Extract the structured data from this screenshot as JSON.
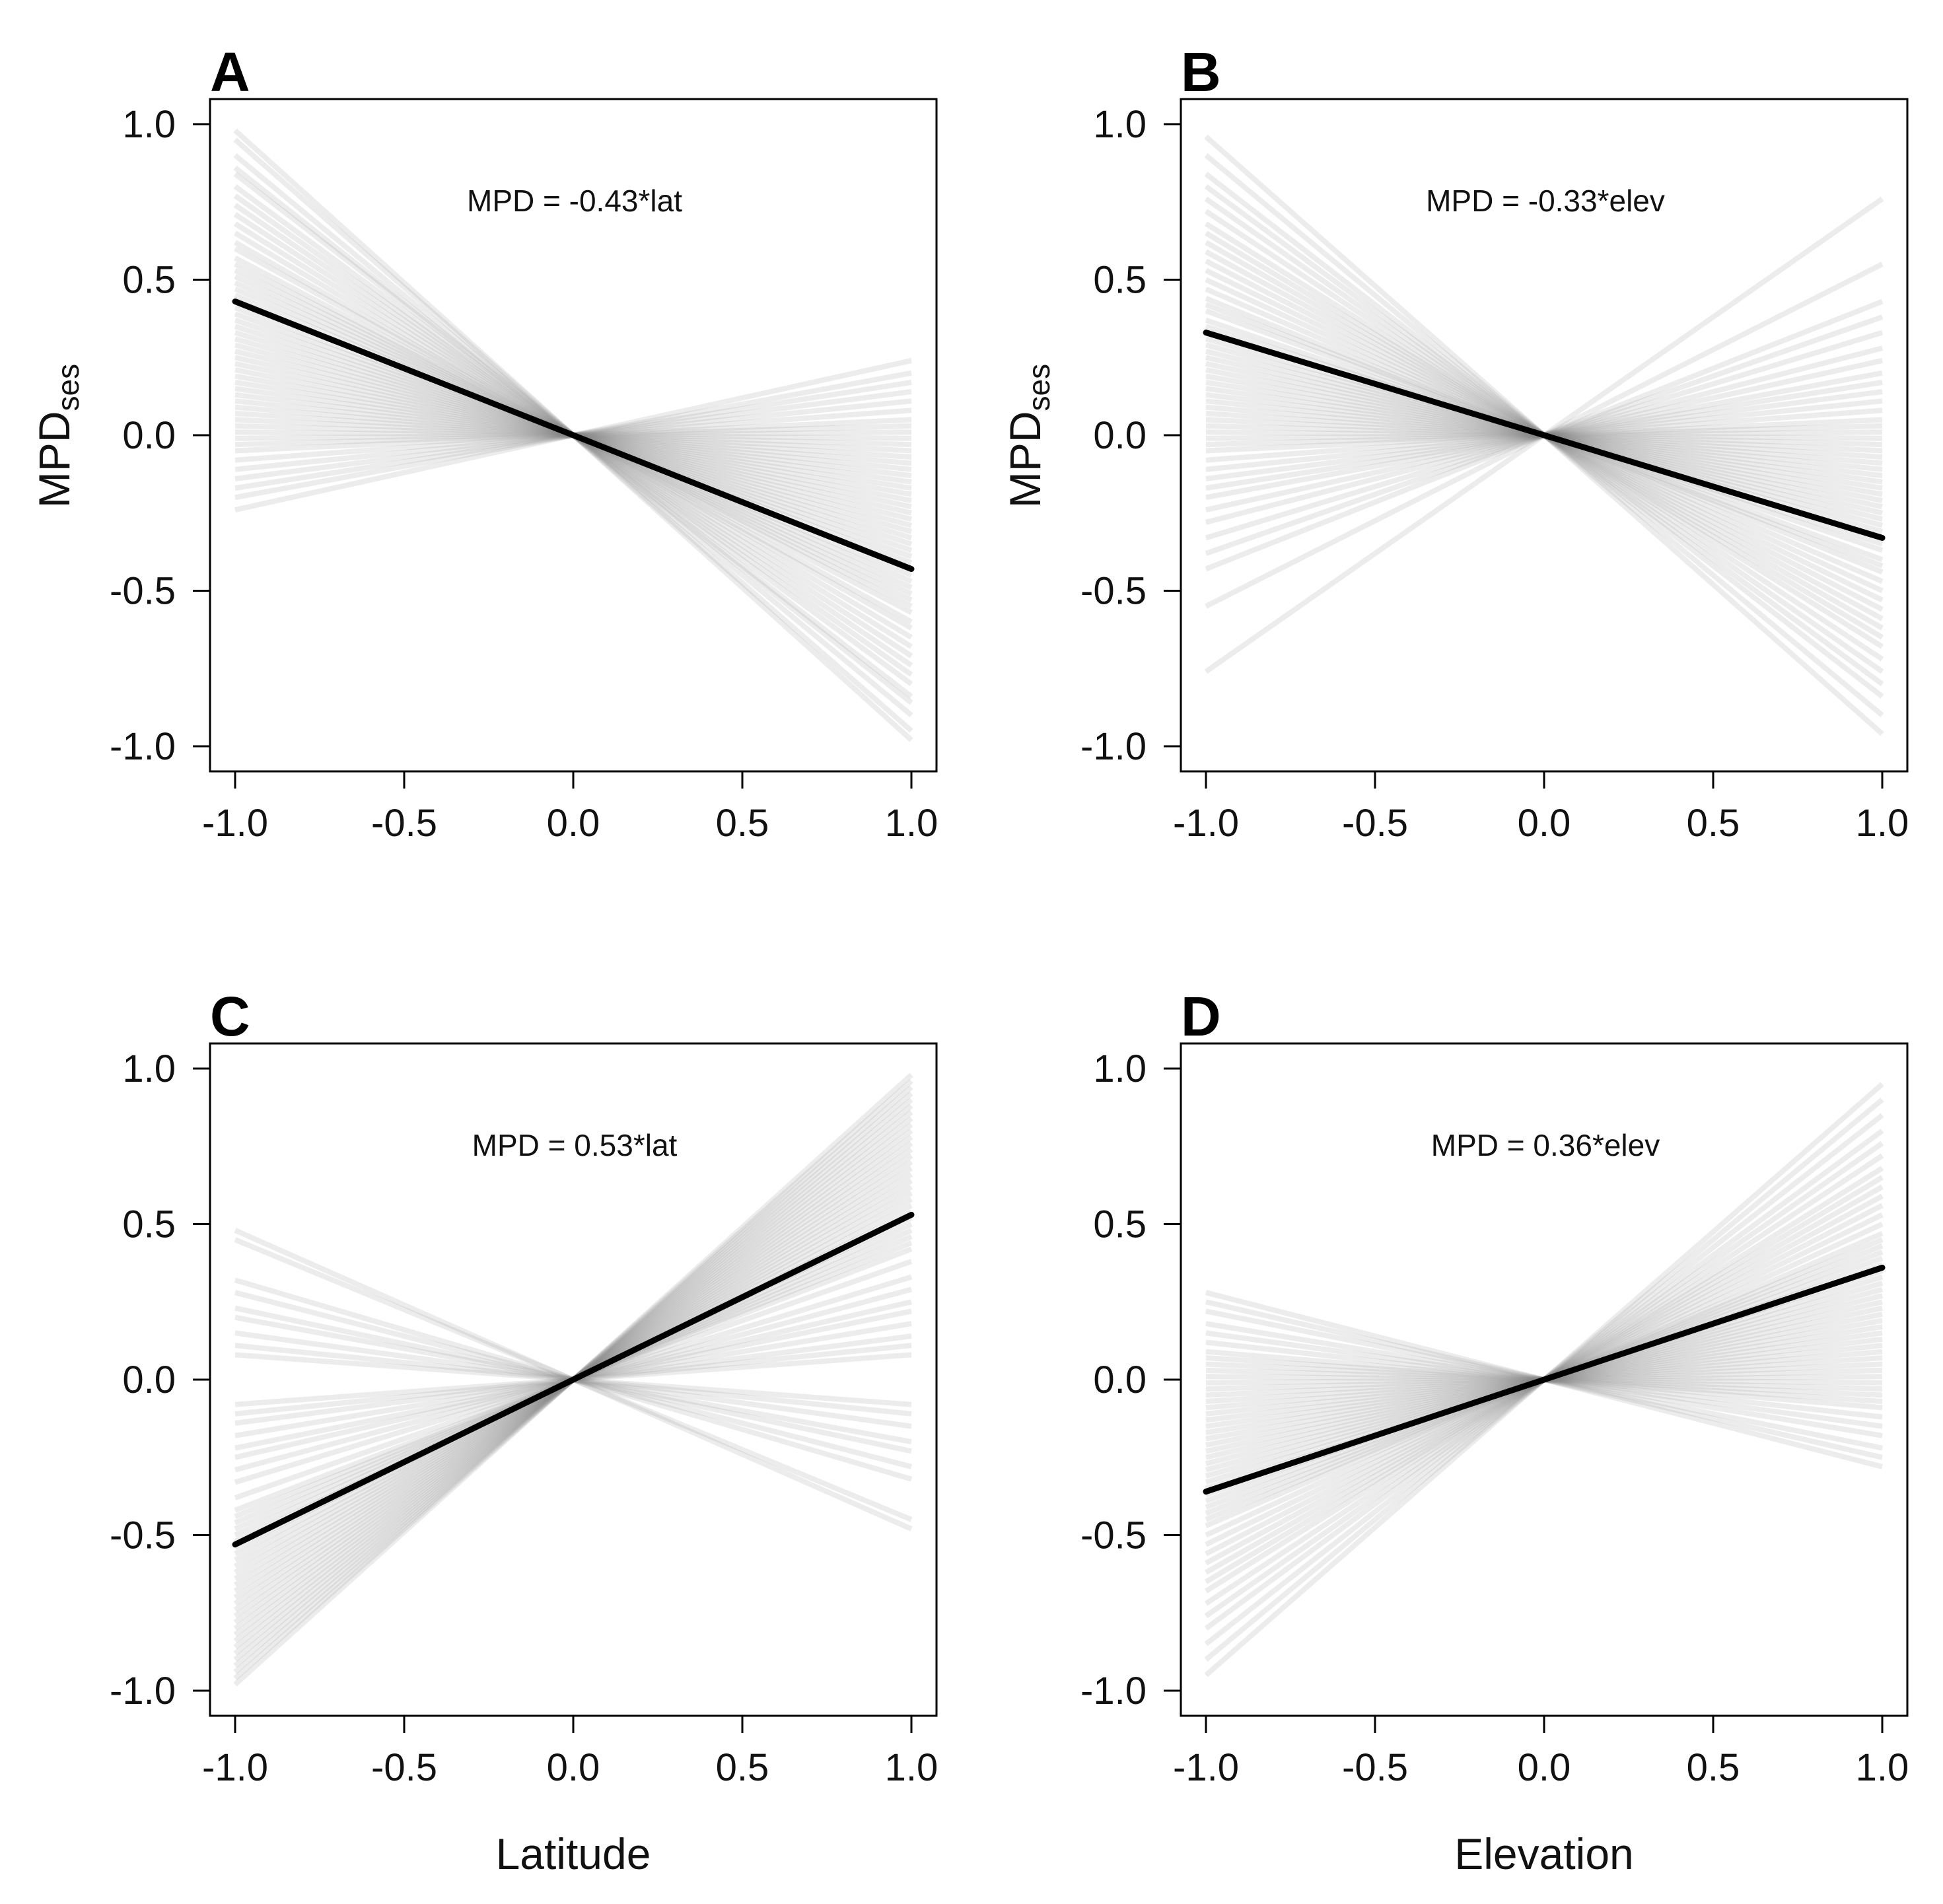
{
  "chart_data": [
    {
      "panel": "A",
      "type": "line",
      "equation": "MPD = -0.43*lat",
      "ylabel": "MPD",
      "ylabel_sub": "ses",
      "xlabel": "",
      "xlim": [
        -1.0,
        1.0
      ],
      "ylim": [
        -1.0,
        1.0
      ],
      "xticks": [
        "-1.0",
        "-0.5",
        "0.0",
        "0.5",
        "1.0"
      ],
      "yticks": [
        "1.0",
        "0.5",
        "0.0",
        "-0.5",
        "-1.0"
      ],
      "mean_slope": -0.43,
      "posterior_slopes": [
        -0.98,
        -0.95,
        -0.9,
        -0.86,
        -0.84,
        -0.8,
        -0.77,
        -0.74,
        -0.71,
        -0.68,
        -0.65,
        -0.62,
        -0.6,
        -0.57,
        -0.55,
        -0.53,
        -0.51,
        -0.49,
        -0.47,
        -0.45,
        -0.43,
        -0.41,
        -0.39,
        -0.37,
        -0.35,
        -0.33,
        -0.31,
        -0.29,
        -0.27,
        -0.25,
        -0.23,
        -0.21,
        -0.19,
        -0.17,
        -0.15,
        -0.13,
        -0.11,
        -0.09,
        -0.07,
        -0.05,
        -0.03,
        -0.01,
        0.01,
        0.03,
        0.05,
        0.08,
        0.11,
        0.14,
        0.17,
        0.2,
        0.24
      ]
    },
    {
      "panel": "B",
      "type": "line",
      "equation": "MPD = -0.33*elev",
      "ylabel": "MPD",
      "ylabel_sub": "ses",
      "xlabel": "",
      "xlim": [
        -1.0,
        1.0
      ],
      "ylim": [
        -1.0,
        1.0
      ],
      "xticks": [
        "-1.0",
        "-0.5",
        "0.0",
        "0.5",
        "1.0"
      ],
      "yticks": [
        "1.0",
        "0.5",
        "0.0",
        "-0.5",
        "-1.0"
      ],
      "mean_slope": -0.33,
      "posterior_slopes": [
        -0.96,
        -0.9,
        -0.84,
        -0.8,
        -0.76,
        -0.72,
        -0.68,
        -0.65,
        -0.62,
        -0.59,
        -0.56,
        -0.53,
        -0.5,
        -0.47,
        -0.44,
        -0.42,
        -0.4,
        -0.37,
        -0.35,
        -0.33,
        -0.31,
        -0.29,
        -0.27,
        -0.25,
        -0.23,
        -0.21,
        -0.19,
        -0.17,
        -0.15,
        -0.13,
        -0.11,
        -0.09,
        -0.07,
        -0.05,
        -0.03,
        -0.01,
        0.01,
        0.03,
        0.05,
        0.08,
        0.11,
        0.14,
        0.17,
        0.2,
        0.24,
        0.28,
        0.33,
        0.38,
        0.43,
        0.55,
        0.76
      ]
    },
    {
      "panel": "C",
      "type": "line",
      "equation": "MPD = 0.53*lat",
      "ylabel": "",
      "ylabel_sub": "",
      "xlabel": "Latitude",
      "xlim": [
        -1.0,
        1.0
      ],
      "ylim": [
        -1.0,
        1.0
      ],
      "xticks": [
        "-1.0",
        "-0.5",
        "0.0",
        "0.5",
        "1.0"
      ],
      "yticks": [
        "1.0",
        "0.5",
        "0.0",
        "-0.5",
        "-1.0"
      ],
      "mean_slope": 0.53,
      "posterior_slopes": [
        0.98,
        0.96,
        0.94,
        0.92,
        0.9,
        0.88,
        0.86,
        0.84,
        0.82,
        0.8,
        0.78,
        0.76,
        0.74,
        0.72,
        0.7,
        0.68,
        0.66,
        0.64,
        0.62,
        0.6,
        0.58,
        0.56,
        0.54,
        0.52,
        0.5,
        0.48,
        0.46,
        0.44,
        0.42,
        0.38,
        0.33,
        0.29,
        0.25,
        0.22,
        0.18,
        0.14,
        0.11,
        0.08,
        -0.08,
        -0.11,
        -0.15,
        -0.2,
        -0.23,
        -0.28,
        -0.32,
        -0.45,
        -0.48
      ]
    },
    {
      "panel": "D",
      "type": "line",
      "equation": "MPD = 0.36*elev",
      "ylabel": "",
      "ylabel_sub": "",
      "xlabel": "Elevation",
      "xlim": [
        -1.0,
        1.0
      ],
      "ylim": [
        -1.0,
        1.0
      ],
      "xticks": [
        "-1.0",
        "-0.5",
        "0.0",
        "0.5",
        "1.0"
      ],
      "yticks": [
        "1.0",
        "0.5",
        "0.0",
        "-0.5",
        "-1.0"
      ],
      "mean_slope": 0.36,
      "posterior_slopes": [
        0.95,
        0.9,
        0.85,
        0.8,
        0.76,
        0.72,
        0.68,
        0.65,
        0.62,
        0.59,
        0.56,
        0.53,
        0.5,
        0.47,
        0.45,
        0.43,
        0.41,
        0.39,
        0.37,
        0.35,
        0.33,
        0.31,
        0.29,
        0.27,
        0.25,
        0.23,
        0.21,
        0.19,
        0.17,
        0.15,
        0.13,
        0.11,
        0.09,
        0.07,
        0.05,
        0.03,
        0.01,
        -0.01,
        -0.03,
        -0.05,
        -0.07,
        -0.09,
        -0.12,
        -0.15,
        -0.18,
        -0.22,
        -0.25,
        -0.28
      ]
    }
  ],
  "colors": {
    "mean_line": "#000000",
    "posterior_line": "#8a8a8a",
    "axis": "#000000"
  }
}
